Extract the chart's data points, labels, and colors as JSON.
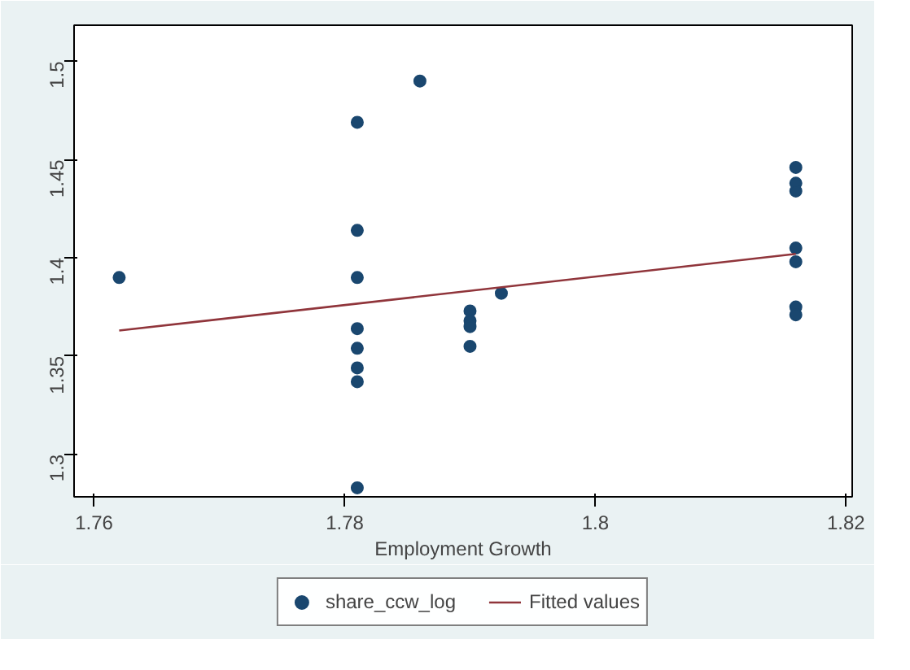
{
  "chart_data": {
    "type": "scatter",
    "xlabel": "Employment Growth",
    "xlim": [
      1.7584,
      1.8205
    ],
    "ylim": [
      1.2784,
      1.5184
    ],
    "xticks": [
      1.76,
      1.78,
      {
        "value": 1.8,
        "label": "1.8"
      },
      1.82
    ],
    "yticks": [
      {
        "value": 1.3,
        "label": "1.3"
      },
      1.35,
      {
        "value": 1.4,
        "label": "1.4"
      },
      1.45,
      {
        "value": 1.5,
        "label": "1.5"
      }
    ],
    "grid": false,
    "legend": "bottom",
    "series": [
      {
        "name": "share_ccw_log",
        "color": "#1a476f",
        "marker": "circle",
        "x": [
          1.762,
          1.781,
          1.781,
          1.781,
          1.781,
          1.781,
          1.781,
          1.781,
          1.781,
          1.786,
          1.79,
          1.79,
          1.79,
          1.79,
          1.7925,
          1.816,
          1.816,
          1.816,
          1.816,
          1.816,
          1.816,
          1.816
        ],
        "values": [
          1.39,
          1.469,
          1.414,
          1.39,
          1.364,
          1.354,
          1.344,
          1.337,
          1.283,
          1.49,
          1.373,
          1.368,
          1.365,
          1.355,
          1.382,
          1.446,
          1.438,
          1.434,
          1.405,
          1.398,
          1.375,
          1.371
        ]
      },
      {
        "name": "Fitted values",
        "color": "#90353b",
        "type": "line",
        "line_style": "solid",
        "x": [
          1.762,
          1.816
        ],
        "values": [
          1.363,
          1.402
        ]
      }
    ]
  }
}
